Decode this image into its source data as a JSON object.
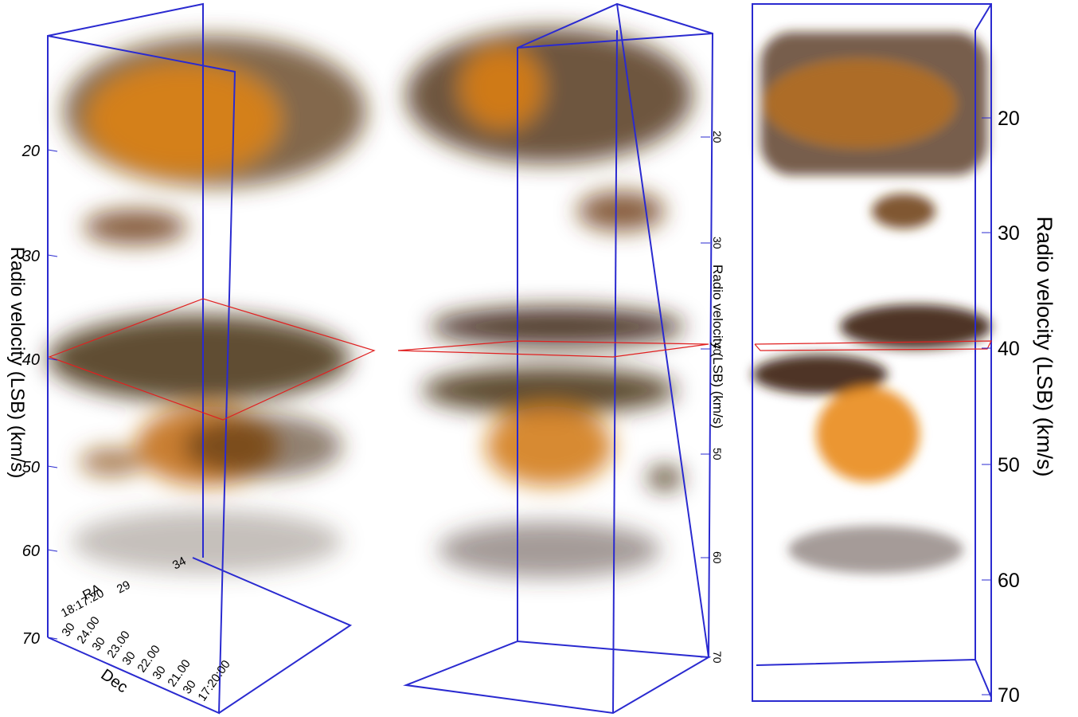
{
  "panels": [
    {
      "axis_title": "Radio velocity (LSB) (km/s)",
      "ticks": [
        "20",
        "30",
        "40",
        "50",
        "60",
        "70"
      ],
      "ra_label": "RA",
      "dec_label": "Dec",
      "ra_ticks": [
        "18:17:20",
        "29",
        "34"
      ],
      "dec_ticks": [
        "30",
        "24.00",
        "30",
        "23.00",
        "30",
        "22.00",
        "30",
        "21.00",
        "30",
        "17:20:00"
      ]
    },
    {
      "axis_title": "Radio velocity (LSB) (km/s)",
      "ticks": [
        "20",
        "30",
        "40",
        "50",
        "60",
        "70"
      ]
    },
    {
      "axis_title": "Radio velocity (LSB) (km/s)",
      "ticks": [
        "20",
        "30",
        "40",
        "50",
        "60",
        "70"
      ]
    }
  ]
}
